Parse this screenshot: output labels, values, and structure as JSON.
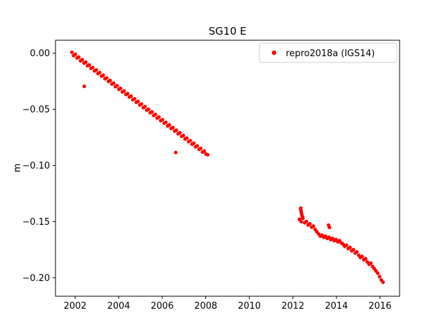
{
  "figure": {
    "background": "#ffffff"
  },
  "chart_data": {
    "type": "scatter",
    "title": "SG10 E",
    "xlabel": "",
    "ylabel": "m",
    "marker_color": "#ff0000",
    "legend": {
      "position": "upper-right",
      "entries": [
        {
          "label": "repro2018a (IGS14)",
          "color": "#ff0000"
        }
      ]
    },
    "axes": {
      "xlim": [
        2001.1,
        2016.9
      ],
      "ylim": [
        -0.2165,
        0.0115
      ],
      "xticks": [
        2002,
        2004,
        2006,
        2008,
        2010,
        2012,
        2014,
        2016
      ],
      "xtick_labels": [
        "2002",
        "2004",
        "2006",
        "2008",
        "2010",
        "2012",
        "2014",
        "2016"
      ],
      "yticks": [
        0.0,
        -0.05,
        -0.1,
        -0.15,
        -0.2
      ],
      "ytick_labels": [
        "0.00",
        "−0.05",
        "−0.10",
        "−0.15",
        "−0.20"
      ],
      "grid": false
    },
    "series": [
      {
        "name": "repro2018a (IGS14)",
        "segments": [
          {
            "x_start": 2001.85,
            "x_step": 0.08,
            "y": [
              0.0008,
              -0.0022,
              -0.001,
              -0.0042,
              -0.0035,
              -0.0068,
              -0.0058,
              -0.0088,
              -0.008,
              -0.0112,
              -0.0105,
              -0.0135,
              -0.0128,
              -0.0158,
              -0.015,
              -0.0182,
              -0.0173,
              -0.0205,
              -0.0197,
              -0.0228,
              -0.022,
              -0.0252,
              -0.0243,
              -0.0275,
              -0.0267,
              -0.0298,
              -0.029,
              -0.0322,
              -0.0313,
              -0.0345,
              -0.0337,
              -0.0368,
              -0.036,
              -0.0391,
              -0.0383,
              -0.0415,
              -0.0406,
              -0.0438,
              -0.043,
              -0.0461,
              -0.0453,
              -0.0485,
              -0.0476,
              -0.0508,
              -0.05,
              -0.0531,
              -0.0523,
              -0.0555,
              -0.0546,
              -0.0578,
              -0.0569,
              -0.0601,
              -0.0593,
              -0.0624,
              -0.0616,
              -0.0648,
              -0.0639,
              -0.0671,
              -0.0663,
              -0.0694,
              -0.0686,
              -0.0718,
              -0.0709,
              -0.0741,
              -0.0733,
              -0.0764,
              -0.0756,
              -0.0788,
              -0.0779,
              -0.0811,
              -0.0802,
              -0.0834,
              -0.0826,
              -0.0857,
              -0.0849,
              -0.0881,
              -0.0872,
              -0.0899,
              -0.0905
            ]
          },
          {
            "x_start": 2012.3,
            "x_step": 0.08,
            "y": [
              -0.148,
              -0.15,
              -0.147,
              -0.151,
              -0.15,
              -0.153,
              -0.152,
              -0.155,
              -0.154,
              -0.157,
              -0.159,
              -0.161,
              -0.163,
              -0.162,
              -0.164,
              -0.163,
              -0.165,
              -0.164,
              -0.166,
              -0.165,
              -0.167,
              -0.166,
              -0.168,
              -0.167,
              -0.169,
              -0.17,
              -0.172,
              -0.171,
              -0.174,
              -0.173,
              -0.176,
              -0.175,
              -0.178,
              -0.177,
              -0.18,
              -0.182,
              -0.181,
              -0.184,
              -0.183,
              -0.186,
              -0.188,
              -0.187,
              -0.19,
              -0.192,
              -0.194,
              -0.196,
              -0.199,
              -0.202,
              -0.204
            ]
          }
        ],
        "outlier_points": [
          [
            2002.42,
            -0.0295
          ],
          [
            2006.62,
            -0.0885
          ],
          [
            2012.36,
            -0.138
          ],
          [
            2012.37,
            -0.1398
          ],
          [
            2012.385,
            -0.1415
          ],
          [
            2012.4,
            -0.143
          ],
          [
            2012.42,
            -0.1447
          ],
          [
            2012.44,
            -0.146
          ],
          [
            2013.64,
            -0.1532
          ],
          [
            2013.68,
            -0.1552
          ]
        ]
      }
    ]
  }
}
